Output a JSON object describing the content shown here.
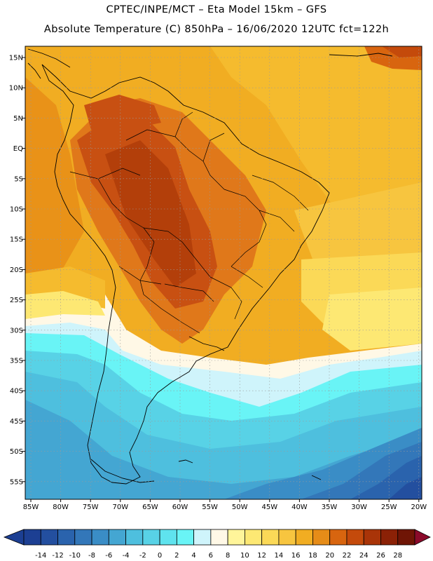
{
  "header": {
    "line1": "CPTEC/INPE/MCT –  Eta Model 15km – GFS",
    "line2": "Absolute Temperature (C) 850hPa – 16/06/2020 12UTC fct=122h"
  },
  "map": {
    "lat_labels": [
      "15N",
      "10N",
      "5N",
      "EQ",
      "5S",
      "10S",
      "15S",
      "20S",
      "25S",
      "30S",
      "35S",
      "40S",
      "45S",
      "50S",
      "55S"
    ],
    "lon_labels": [
      "85W",
      "80W",
      "75W",
      "70W",
      "65W",
      "60W",
      "55W",
      "50W",
      "45W",
      "40W",
      "35W",
      "30W",
      "25W",
      "20W"
    ]
  },
  "legend": {
    "values": [
      "-14",
      "-12",
      "-10",
      "-8",
      "-6",
      "-4",
      "-2",
      "0",
      "2",
      "4",
      "6",
      "8",
      "10",
      "12",
      "14",
      "16",
      "18",
      "20",
      "22",
      "24",
      "26",
      "28"
    ],
    "colors": [
      "#1c3f93",
      "#234f9f",
      "#2a63ad",
      "#3377b9",
      "#3a8dc6",
      "#44a6d2",
      "#4ebfde",
      "#58d2e6",
      "#5fe3ee",
      "#69f4f6",
      "#cff4fb",
      "#fff8e6",
      "#fff59a",
      "#fde873",
      "#fbd957",
      "#f7c53f",
      "#f1ad22",
      "#e68c18",
      "#d8650f",
      "#c44a0b",
      "#a93408",
      "#8b2106",
      "#6f1505"
    ]
  }
}
